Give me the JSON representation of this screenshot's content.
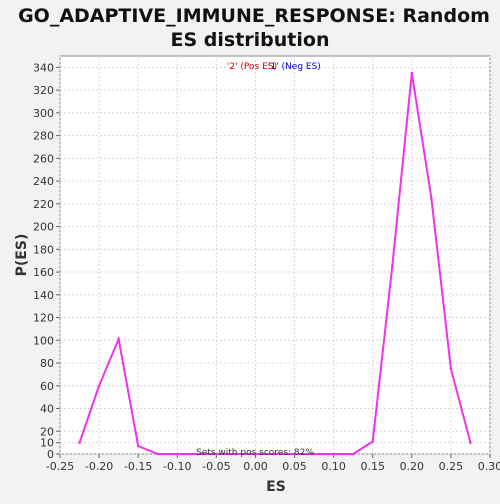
{
  "chart_data": {
    "type": "line",
    "title_line1": "GO_ADAPTIVE_IMMUNE_RESPONSE: Random",
    "title_line2": "ES distribution",
    "xlabel": "ES",
    "ylabel": "P(ES)",
    "xlim": [
      -0.25,
      0.3
    ],
    "ylim": [
      0,
      350
    ],
    "x_ticks": [
      "-0.25",
      "-0.20",
      "-0.15",
      "-0.10",
      "-0.05",
      "0.00",
      "0.05",
      "0.10",
      "0.15",
      "0.20",
      "0.25",
      "0.30"
    ],
    "x_tick_values": [
      -0.25,
      -0.2,
      -0.15,
      -0.1,
      -0.05,
      0.0,
      0.05,
      0.1,
      0.15,
      0.2,
      0.25,
      0.3
    ],
    "y_ticks": [
      0,
      10,
      20,
      40,
      60,
      80,
      100,
      120,
      140,
      160,
      180,
      200,
      220,
      240,
      260,
      280,
      300,
      320,
      340
    ],
    "grid": true,
    "legend": {
      "pos_label": "'2' (Pos ES)",
      "neg_label": "'1' (Neg ES)",
      "pos_color": "#dd0000",
      "neg_color": "#0000dd",
      "placement": "top-center"
    },
    "annotation": "Sets with pos scores: 82%",
    "line_color": "#ee33ee",
    "series": [
      {
        "x": [
          -0.225,
          -0.2,
          -0.175,
          -0.15,
          -0.125,
          -0.1,
          -0.075,
          -0.05,
          -0.025,
          0.0,
          0.025,
          0.05,
          0.075,
          0.1,
          0.125,
          0.15,
          0.175,
          0.2,
          0.225,
          0.25,
          0.275
        ],
        "values": [
          10,
          60,
          101,
          7,
          0,
          0,
          0,
          0,
          0,
          0,
          0,
          0,
          0,
          0,
          0,
          11,
          165,
          335,
          225,
          75,
          10
        ]
      }
    ]
  }
}
